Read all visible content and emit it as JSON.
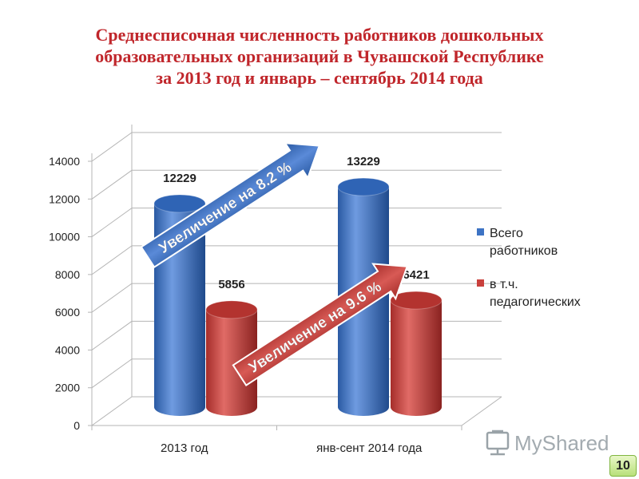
{
  "title_lines": [
    "Среднесписочная численность работников дошкольных",
    "образовательных организаций в Чувашской Республике",
    "за 2013 год и январь – сентябрь 2014 года"
  ],
  "chart_data": {
    "type": "bar",
    "style": "3d-cylinder",
    "categories": [
      "2013 год",
      "янв-сент 2014 года"
    ],
    "series": [
      {
        "name": "Всего работников",
        "values": [
          12229,
          13229
        ],
        "color": "#3d73c4"
      },
      {
        "name": "в т.ч. педагогических",
        "values": [
          5856,
          6421
        ],
        "color": "#c9403c"
      }
    ],
    "ylim": [
      0,
      14000
    ],
    "yticks": [
      0,
      2000,
      4000,
      6000,
      8000,
      10000,
      12000,
      14000
    ],
    "grid": true,
    "legend": "right",
    "data_labels": true,
    "annotations": [
      {
        "text": "Увеличение на 8.2 %",
        "color": "#3d73c4"
      },
      {
        "text": "Увеличение на 9.6 %",
        "color": "#c9403c"
      }
    ]
  },
  "watermark": {
    "text": "MyShared",
    "icon": "presentation-board-icon"
  },
  "page_number": "10"
}
